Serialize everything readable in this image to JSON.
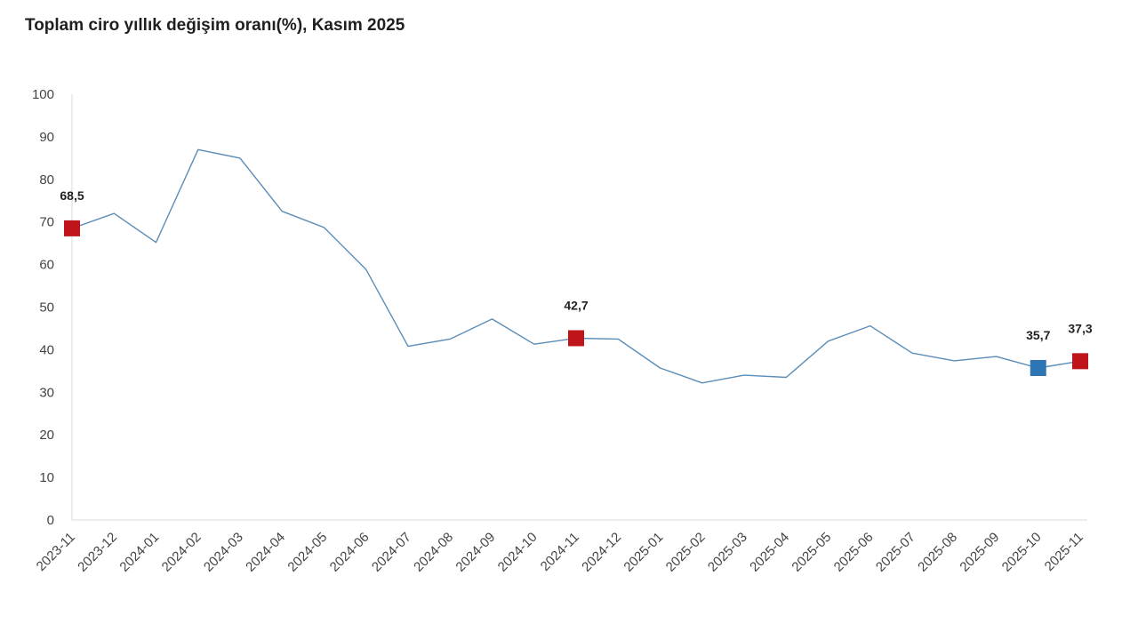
{
  "chart_data": {
    "type": "line",
    "title": "Toplam ciro yıllık değişim oranı(%), Kasım 2025",
    "xlabel": "",
    "ylabel": "",
    "ylim": [
      0,
      100
    ],
    "yticks": [
      "0",
      "10",
      "20",
      "30",
      "40",
      "50",
      "60",
      "70",
      "80",
      "90",
      "100"
    ],
    "categories": [
      "2023-11",
      "2023-12",
      "2024-01",
      "2024-02",
      "2024-03",
      "2024-04",
      "2024-05",
      "2024-06",
      "2024-07",
      "2024-08",
      "2024-09",
      "2024-10",
      "2024-11",
      "2024-12",
      "2025-01",
      "2025-02",
      "2025-03",
      "2025-04",
      "2025-05",
      "2025-06",
      "2025-07",
      "2025-08",
      "2025-09",
      "2025-10",
      "2025-11"
    ],
    "series": [
      {
        "name": "Toplam ciro yıllık değişim oranı",
        "values": [
          68.5,
          72.0,
          65.2,
          87.0,
          85.0,
          72.5,
          68.7,
          58.8,
          40.8,
          42.5,
          47.2,
          41.3,
          42.7,
          42.5,
          35.7,
          32.2,
          34.0,
          33.5,
          42.0,
          45.6,
          39.2,
          37.4,
          38.4,
          35.7,
          37.3
        ],
        "color": "#5b8db8"
      }
    ],
    "highlights": [
      {
        "index": 0,
        "label": "68,5",
        "color": "#c0141b"
      },
      {
        "index": 12,
        "label": "42,7",
        "color": "#c0141b"
      },
      {
        "index": 23,
        "label": "35,7",
        "color": "#2e75b6"
      },
      {
        "index": 24,
        "label": "37,3",
        "color": "#c0141b"
      }
    ],
    "grid": false,
    "legend": "none"
  }
}
